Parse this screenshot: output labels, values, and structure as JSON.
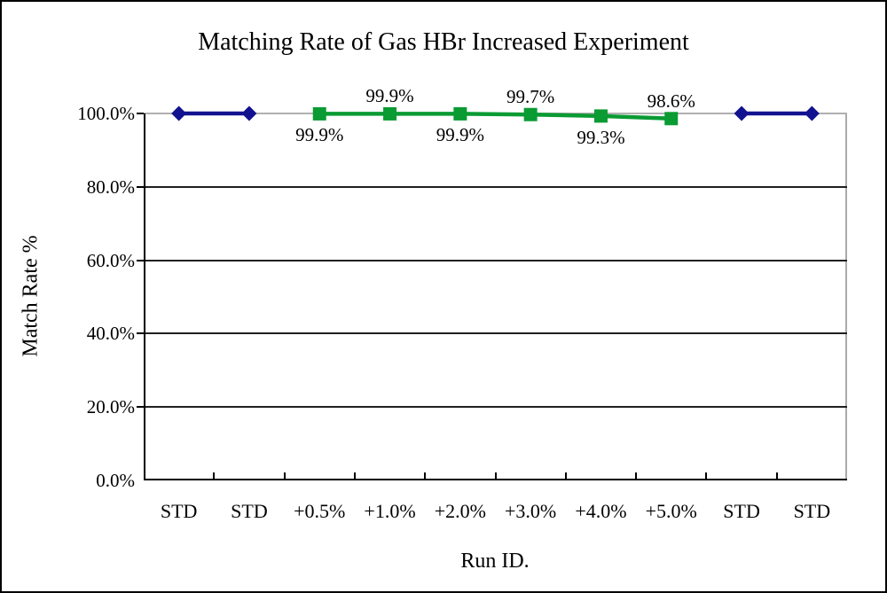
{
  "chart_data": {
    "type": "line",
    "title": "Matching Rate of Gas HBr Increased Experiment",
    "xlabel": "Run ID.",
    "ylabel": "Match Rate %",
    "categories": [
      "STD",
      "STD",
      "+0.5%",
      "+1.0%",
      "+2.0%",
      "+3.0%",
      "+4.0%",
      "+5.0%",
      "STD",
      "STD"
    ],
    "ylim": [
      0,
      100
    ],
    "y_ticks": [
      {
        "value": 0,
        "label": "0.0%"
      },
      {
        "value": 20,
        "label": "20.0%"
      },
      {
        "value": 40,
        "label": "40.0%"
      },
      {
        "value": 60,
        "label": "60.0%"
      },
      {
        "value": 80,
        "label": "80.0%"
      },
      {
        "value": 100,
        "label": "100.0%"
      }
    ],
    "grid": true,
    "legend": "none",
    "series": [
      {
        "id": "std-left",
        "color": "#121291",
        "marker": "diamond",
        "points": [
          {
            "category_index": 0,
            "value": 100.0
          },
          {
            "category_index": 1,
            "value": 100.0
          }
        ]
      },
      {
        "id": "hbr-increased",
        "color": "#0a9b33",
        "marker": "square",
        "points": [
          {
            "category_index": 2,
            "value": 99.9,
            "label": "99.9%",
            "label_pos": "below"
          },
          {
            "category_index": 3,
            "value": 99.9,
            "label": "99.9%",
            "label_pos": "above"
          },
          {
            "category_index": 4,
            "value": 99.9,
            "label": "99.9%",
            "label_pos": "below"
          },
          {
            "category_index": 5,
            "value": 99.7,
            "label": "99.7%",
            "label_pos": "above"
          },
          {
            "category_index": 6,
            "value": 99.3,
            "label": "99.3%",
            "label_pos": "below"
          },
          {
            "category_index": 7,
            "value": 98.6,
            "label": "98.6%",
            "label_pos": "above"
          }
        ]
      },
      {
        "id": "std-right",
        "color": "#121291",
        "marker": "diamond",
        "points": [
          {
            "category_index": 8,
            "value": 100.0
          },
          {
            "category_index": 9,
            "value": 100.0
          }
        ]
      }
    ],
    "style": {
      "grid_color": "#1f1f1f",
      "axis_color": "#000000",
      "plot_border_color": "#aaaaaa",
      "background": "#ffffff"
    }
  }
}
